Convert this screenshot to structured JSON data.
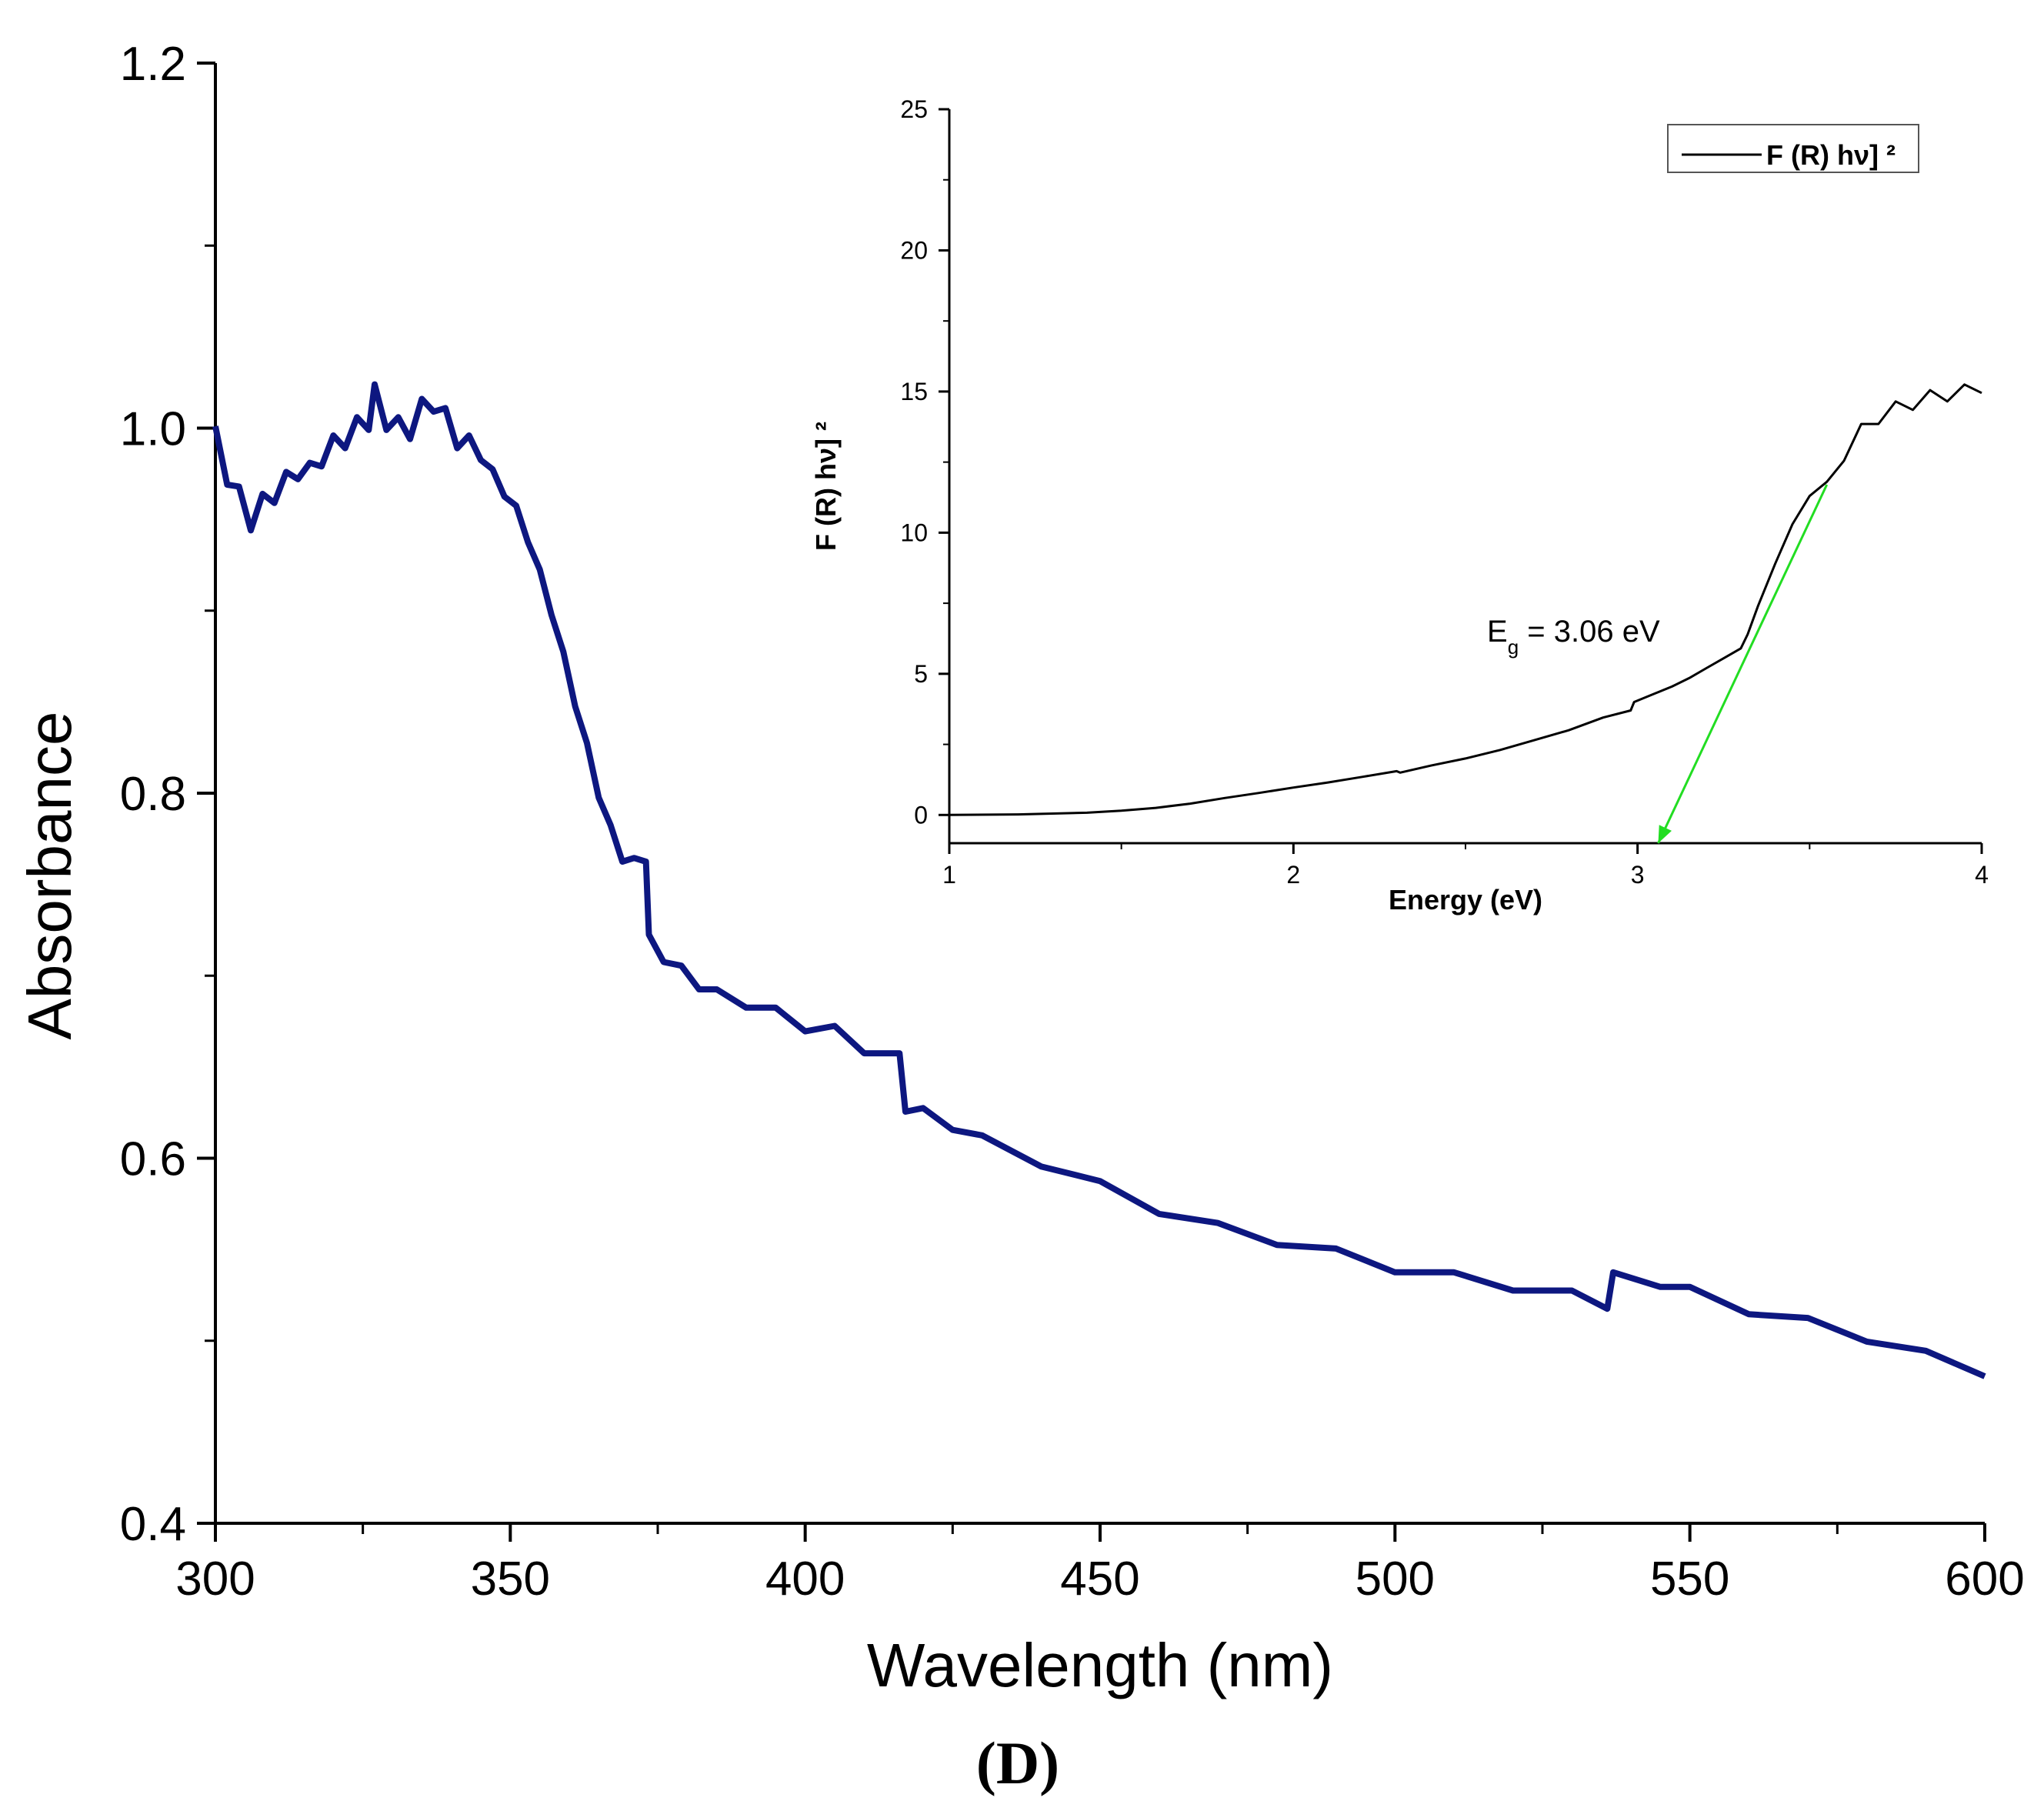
{
  "chart_data": [
    {
      "type": "line",
      "id": "main",
      "xlabel": "Wavelength (nm)",
      "ylabel": "Absorbance",
      "xlim": [
        300,
        600
      ],
      "ylim": [
        0.4,
        1.2
      ],
      "xticks": [
        300,
        350,
        400,
        450,
        500,
        550,
        600
      ],
      "yticks": [
        0.4,
        0.6,
        0.8,
        1.0,
        1.2
      ],
      "xtick_labels": [
        "300",
        "350",
        "400",
        "450",
        "500",
        "550",
        "600"
      ],
      "ytick_labels": [
        "0.4",
        "0.6",
        "0.8",
        "1.0",
        "1.2"
      ],
      "line_color": "#0d1780",
      "series": [
        {
          "name": "Absorbance",
          "x": [
            300,
            302,
            304,
            306,
            308,
            310,
            312,
            314,
            316,
            318,
            320,
            322,
            324,
            326,
            327,
            329,
            331,
            333,
            335,
            337,
            339,
            341,
            343,
            345,
            347,
            349,
            351,
            353,
            355,
            357,
            359,
            361,
            363,
            365,
            367,
            369,
            371,
            373,
            373.5,
            376,
            379,
            382,
            385,
            390,
            395,
            400,
            405,
            410,
            416,
            417,
            420,
            425,
            430,
            440,
            450,
            460,
            470,
            480,
            490,
            500,
            510,
            520,
            530,
            536,
            537,
            545,
            550,
            560,
            570,
            580,
            590,
            600
          ],
          "y": [
            0.995,
            0.975,
            0.962,
            0.95,
            0.958,
            0.965,
            0.97,
            0.978,
            0.975,
            0.985,
            0.99,
            0.995,
            1.0,
            1.005,
            1.018,
            1.005,
            1.0,
            1.0,
            1.01,
            1.015,
            1.005,
            0.995,
            0.99,
            0.985,
            0.975,
            0.965,
            0.955,
            0.94,
            0.92,
            0.9,
            0.875,
            0.85,
            0.825,
            0.8,
            0.78,
            0.765,
            0.762,
            0.765,
            0.72,
            0.71,
            0.703,
            0.695,
            0.69,
            0.685,
            0.68,
            0.672,
            0.67,
            0.66,
            0.655,
            0.628,
            0.625,
            0.618,
            0.61,
            0.598,
            0.585,
            0.572,
            0.562,
            0.555,
            0.548,
            0.54,
            0.535,
            0.53,
            0.525,
            0.52,
            0.535,
            0.532,
            0.527,
            0.517,
            0.51,
            0.502,
            0.492,
            0.483
          ]
        }
      ],
      "panel_label": "(D)"
    },
    {
      "type": "line",
      "id": "inset",
      "xlabel": "Energy (eV)",
      "ylabel": "F (R) hν] ²",
      "xlim": [
        1,
        4
      ],
      "ylim": [
        -1,
        25
      ],
      "xticks": [
        1,
        2,
        3,
        4
      ],
      "yticks": [
        0,
        5,
        10,
        15,
        20,
        25
      ],
      "xtick_labels": [
        "1",
        "2",
        "3",
        "4"
      ],
      "ytick_labels": [
        "0",
        "5",
        "10",
        "15",
        "20",
        "25"
      ],
      "legend": {
        "label": "F (R) hν] ²",
        "position": "top-right"
      },
      "series": [
        {
          "name": "F (R) hν] ²",
          "color": "#000000",
          "x": [
            1.0,
            1.2,
            1.4,
            1.5,
            1.6,
            1.7,
            1.8,
            1.9,
            2.0,
            2.1,
            2.2,
            2.3,
            2.31,
            2.4,
            2.5,
            2.6,
            2.7,
            2.8,
            2.9,
            2.98,
            2.99,
            3.05,
            3.1,
            3.15,
            3.2,
            3.25,
            3.3,
            3.32,
            3.35,
            3.4,
            3.45,
            3.5,
            3.55,
            3.6,
            3.65,
            3.7,
            3.75,
            3.8,
            3.85,
            3.9,
            3.95,
            4.0
          ],
          "y": [
            0.0,
            0.02,
            0.08,
            0.15,
            0.25,
            0.4,
            0.6,
            0.78,
            0.97,
            1.15,
            1.35,
            1.55,
            1.5,
            1.75,
            2.0,
            2.3,
            2.65,
            3.0,
            3.45,
            3.7,
            4.0,
            4.3,
            4.55,
            4.85,
            5.2,
            5.55,
            5.9,
            6.4,
            7.4,
            8.9,
            10.3,
            11.3,
            11.8,
            12.8,
            13.6,
            14.1,
            14.4,
            14.6,
            14.8,
            14.9,
            15.0,
            15.2
          ]
        },
        {
          "name": "tangent",
          "color": "#22dd22",
          "x": [
            3.55,
            3.06
          ],
          "y": [
            11.7,
            -1.0
          ]
        }
      ],
      "annotation": {
        "main": "E",
        "sub": "g",
        "rest": " = 3.06 eV"
      }
    }
  ]
}
